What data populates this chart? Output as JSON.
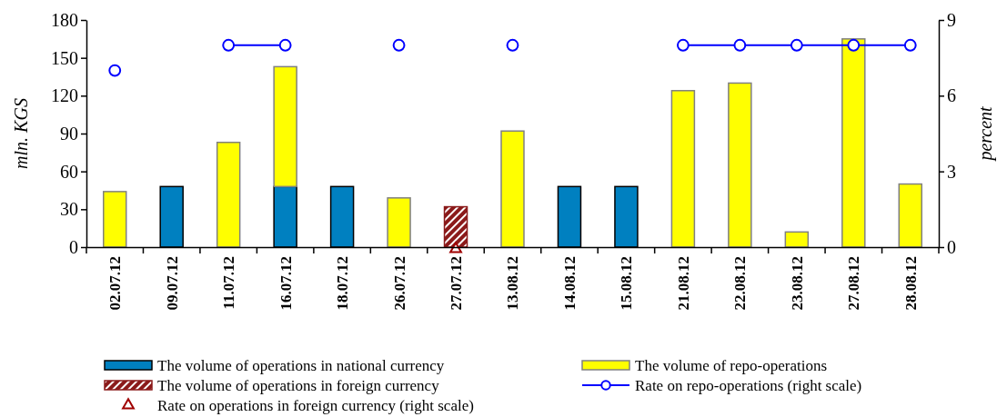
{
  "chart_data": {
    "type": "bar",
    "stacked": true,
    "categories": [
      "02.07.12",
      "09.07.12",
      "11.07.12",
      "16.07.12",
      "18.07.12",
      "26.07.12",
      "27.07.12",
      "13.08.12",
      "14.08.12",
      "15.08.12",
      "21.08.12",
      "22.08.12",
      "23.08.12",
      "27.08.12",
      "28.08.12"
    ],
    "ylabel": "mln. KGS",
    "y2label": "percent",
    "ylim": [
      0,
      180
    ],
    "yticks": [
      0,
      30,
      60,
      90,
      120,
      150,
      180
    ],
    "y2lim": [
      0,
      9
    ],
    "y2ticks": [
      0,
      3,
      6,
      9
    ],
    "legend": "bottom",
    "series": [
      {
        "name": "The volume of operations in national currency",
        "color": "#0080c0",
        "values": [
          null,
          48,
          null,
          48,
          48,
          null,
          null,
          null,
          48,
          48,
          null,
          null,
          null,
          null,
          null
        ]
      },
      {
        "name": "The volume of repo-operations",
        "color": "#ffff00",
        "values": [
          44,
          null,
          83,
          95,
          null,
          39,
          null,
          92,
          null,
          null,
          124,
          130,
          12,
          165,
          50
        ]
      },
      {
        "name": "The volume of operations in foreign currency",
        "color": "#8b1a1a",
        "values": [
          null,
          null,
          null,
          null,
          null,
          null,
          32,
          null,
          null,
          null,
          null,
          null,
          null,
          null,
          null
        ]
      },
      {
        "name": "Rate on repo-operations (right scale)",
        "type": "line",
        "axis": "y2",
        "color": "#0000ff",
        "marker": "circle",
        "line_style": "solid",
        "values": [
          7,
          null,
          8,
          8,
          null,
          8,
          null,
          8,
          null,
          null,
          8,
          8,
          8,
          8,
          8
        ]
      },
      {
        "name": "Rate on operations in foreign currency (right scale)",
        "type": "scatter",
        "axis": "y2",
        "color": "#a00000",
        "marker": "triangle",
        "values": [
          null,
          null,
          null,
          null,
          null,
          null,
          0,
          null,
          null,
          null,
          null,
          null,
          null,
          null,
          null
        ]
      }
    ]
  }
}
